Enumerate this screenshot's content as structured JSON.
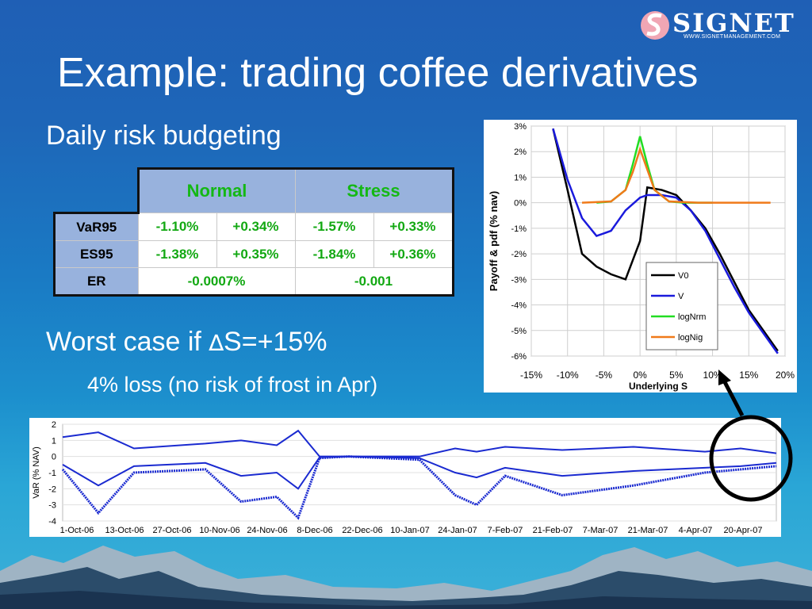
{
  "logo": {
    "word": "SIGNET",
    "url": "WWW.SIGNETMANAGEMENT.COM"
  },
  "title": "Example: trading coffee derivatives",
  "subtitle": "Daily risk budgeting",
  "table": {
    "headers": [
      "Normal",
      "Stress"
    ],
    "rows": [
      {
        "label": "VaR95",
        "cells": [
          "-1.10%",
          "+0.34%",
          "-1.57%",
          "+0.33%"
        ]
      },
      {
        "label": "ES95",
        "cells": [
          "-1.38%",
          "+0.35%",
          "-1.84%",
          "+0.36%"
        ]
      },
      {
        "label": "ER",
        "cells": [
          "-0.0007%",
          "-0.001"
        ]
      }
    ]
  },
  "worst_case": {
    "prefix": "Worst case if ",
    "delta": "∆",
    "suffix": "S=+15%"
  },
  "sub_bullet": "4% loss (no risk of frost in Apr)",
  "colors": {
    "table_header_bg": "#98b2dd",
    "value_green": "#12a812",
    "V0": "#000000",
    "V": "#1a1adc",
    "logNrm": "#22dd22",
    "logNig": "#f07a1a"
  },
  "chart_data": [
    {
      "type": "line",
      "title": "",
      "xlabel": "Underlying S",
      "ylabel": "Payoff & pdf (% nav)",
      "x_ticks": [
        "-15%",
        "-10%",
        "-5%",
        "0%",
        "5%",
        "10%",
        "15%",
        "20%"
      ],
      "y_ticks": [
        "3%",
        "2%",
        "1%",
        "0%",
        "-1%",
        "-2%",
        "-3%",
        "-4%",
        "-5%",
        "-6%"
      ],
      "xlim": [
        -15,
        20
      ],
      "ylim": [
        -6,
        3
      ],
      "grid": true,
      "legend_position": "bottom-right",
      "series": [
        {
          "name": "V0",
          "color": "#000000",
          "x": [
            -12,
            -10,
            -8,
            -6,
            -4,
            -2,
            0,
            1,
            3,
            5,
            7,
            9,
            11,
            13,
            15,
            17,
            19
          ],
          "y": [
            2.9,
            0.5,
            -2.0,
            -2.5,
            -2.8,
            -3.0,
            -1.5,
            0.6,
            0.5,
            0.3,
            -0.3,
            -1.0,
            -2.0,
            -3.1,
            -4.2,
            -5.0,
            -5.8
          ]
        },
        {
          "name": "V",
          "color": "#1a1adc",
          "x": [
            -12,
            -10,
            -8,
            -6,
            -4,
            -2,
            0,
            1,
            3,
            5,
            7,
            9,
            11,
            13,
            15,
            17,
            19
          ],
          "y": [
            2.9,
            0.9,
            -0.6,
            -1.3,
            -1.1,
            -0.3,
            0.2,
            0.3,
            0.3,
            0.2,
            -0.3,
            -1.1,
            -2.2,
            -3.3,
            -4.3,
            -5.1,
            -5.9
          ]
        },
        {
          "name": "logNrm",
          "color": "#22dd22",
          "x": [
            -6,
            -4,
            -2,
            -1,
            0,
            1,
            2,
            4,
            6,
            8,
            10
          ],
          "y": [
            0,
            0.05,
            0.5,
            1.5,
            2.6,
            1.5,
            0.5,
            0.05,
            0,
            0,
            0
          ]
        },
        {
          "name": "logNig",
          "color": "#f07a1a",
          "x": [
            -8,
            -4,
            -2,
            -1,
            0,
            1,
            2,
            4,
            8,
            12,
            18
          ],
          "y": [
            0,
            0.05,
            0.5,
            1.2,
            2.1,
            1.3,
            0.5,
            0.05,
            0,
            0,
            0
          ]
        }
      ]
    },
    {
      "type": "line",
      "title": "",
      "xlabel": "",
      "ylabel": "VaR (% NAV)",
      "x_ticks": [
        "1-Oct-06",
        "13-Oct-06",
        "27-Oct-06",
        "10-Nov-06",
        "24-Nov-06",
        "8-Dec-06",
        "22-Dec-06",
        "10-Jan-07",
        "24-Jan-07",
        "7-Feb-07",
        "21-Feb-07",
        "7-Mar-07",
        "21-Mar-07",
        "4-Apr-07",
        "20-Apr-07"
      ],
      "y_ticks": [
        "2",
        "1",
        "0",
        "-1",
        "-2",
        "-3",
        "-4"
      ],
      "ylim": [
        -4,
        2
      ],
      "grid": true,
      "series": [
        {
          "name": "",
          "color": "#1a2ad0",
          "x": [
            0,
            0.05,
            0.1,
            0.2,
            0.25,
            0.3,
            0.33,
            0.36,
            0.4,
            0.5,
            0.55,
            0.58,
            0.62,
            0.7,
            0.8,
            0.9,
            0.95,
            1.0
          ],
          "y": [
            1.2,
            1.5,
            0.5,
            0.8,
            1.0,
            0.7,
            1.6,
            0,
            0,
            0,
            0.5,
            0.3,
            0.6,
            0.4,
            0.6,
            0.3,
            0.5,
            0.2
          ]
        },
        {
          "name": "",
          "color": "#1a2ad0",
          "x": [
            0,
            0.05,
            0.1,
            0.2,
            0.25,
            0.3,
            0.33,
            0.36,
            0.4,
            0.5,
            0.55,
            0.58,
            0.62,
            0.7,
            0.8,
            0.9,
            0.95,
            1.0
          ],
          "y": [
            -0.5,
            -1.8,
            -0.6,
            -0.4,
            -1.2,
            -1.0,
            -2.0,
            -0.05,
            0,
            -0.1,
            -1.0,
            -1.3,
            -0.7,
            -1.2,
            -0.9,
            -0.7,
            -0.6,
            -0.4
          ]
        },
        {
          "name": "",
          "color": "#1a2ad0",
          "x": [
            0,
            0.05,
            0.1,
            0.2,
            0.25,
            0.3,
            0.33,
            0.36,
            0.4,
            0.5,
            0.55,
            0.58,
            0.62,
            0.7,
            0.8,
            0.9,
            0.95,
            1.0
          ],
          "y": [
            -0.8,
            -3.5,
            -1.0,
            -0.8,
            -2.8,
            -2.5,
            -3.8,
            -0.1,
            0,
            -0.2,
            -2.4,
            -3.0,
            -1.2,
            -2.4,
            -1.8,
            -1.0,
            -0.8,
            -0.6
          ]
        }
      ]
    }
  ]
}
